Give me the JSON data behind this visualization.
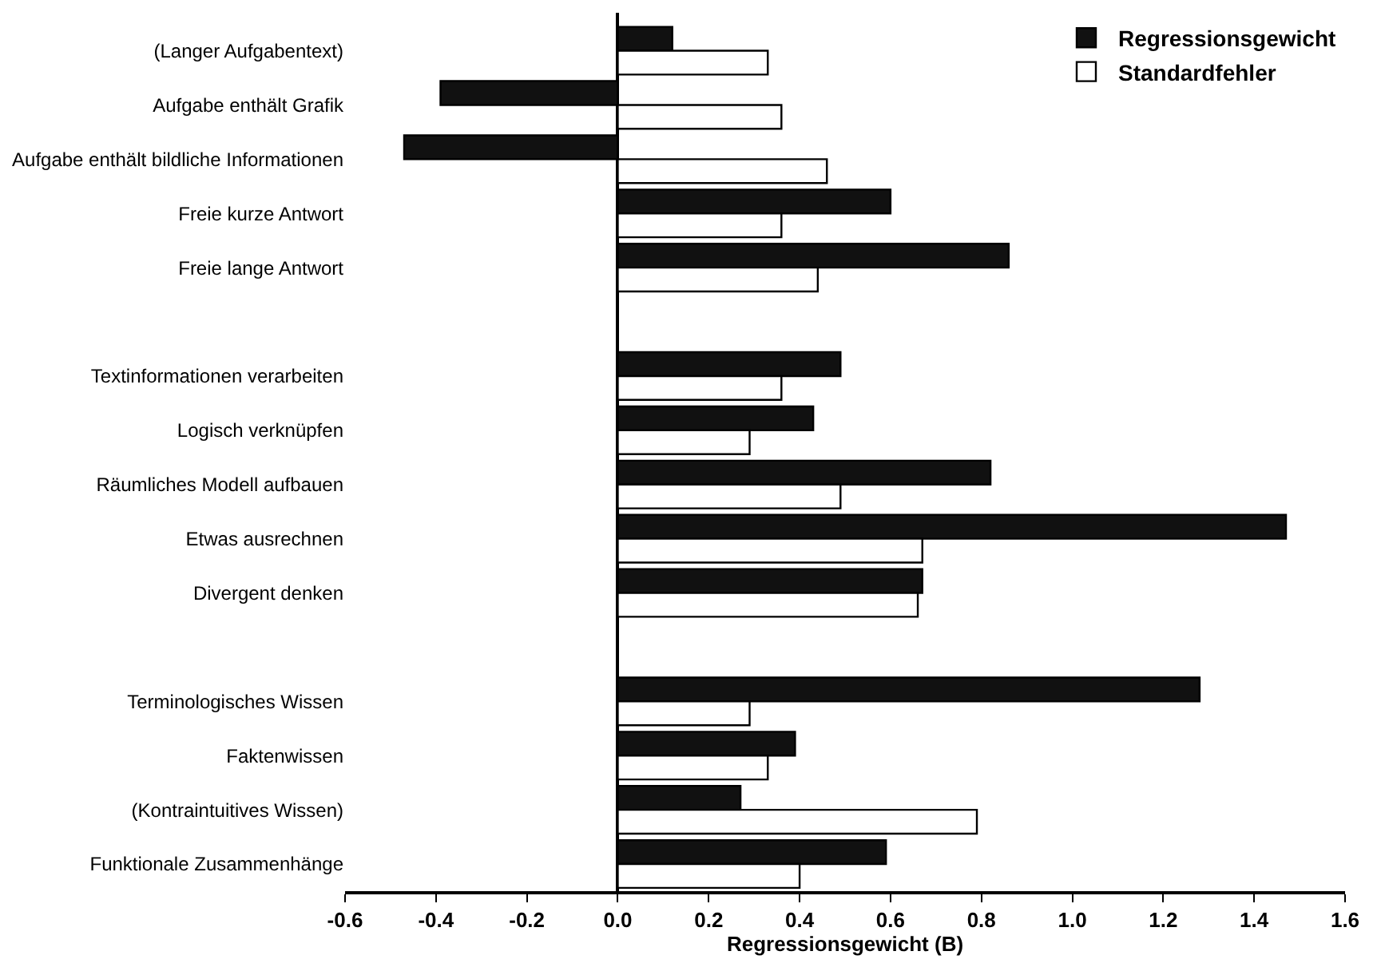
{
  "chart_data": {
    "type": "bar",
    "orientation": "horizontal",
    "xlabel": "Regressionsgewicht (B)",
    "categories": [
      "(Langer Aufgabentext)",
      "Aufgabe enthält Grafik",
      "Aufgabe enthält bildliche Informationen",
      "Freie kurze Antwort",
      "Freie lange Antwort",
      null,
      "Textinformationen verarbeiten",
      "Logisch verknüpfen",
      "Räumliches Modell aufbauen",
      "Etwas ausrechnen",
      "Divergent denken",
      null,
      "Terminologisches Wissen",
      "Faktenwissen",
      "(Kontraintuitives Wissen)",
      "Funktionale Zusammenhänge"
    ],
    "series": [
      {
        "name": "Regressionsgewicht",
        "color": "#111111",
        "values": [
          0.12,
          -0.39,
          -0.47,
          0.6,
          0.86,
          null,
          0.49,
          0.43,
          0.82,
          1.47,
          0.67,
          null,
          1.28,
          0.39,
          0.27,
          0.59
        ]
      },
      {
        "name": "Standardfehler",
        "color": "#ffffff",
        "values": [
          0.33,
          0.36,
          0.46,
          0.36,
          0.44,
          null,
          0.36,
          0.29,
          0.49,
          0.67,
          0.66,
          null,
          0.29,
          0.33,
          0.79,
          0.4
        ]
      }
    ],
    "xlim": [
      -0.6,
      1.6
    ],
    "xticks": [
      {
        "value": -0.6,
        "label": "-0.6"
      },
      {
        "value": -0.4,
        "label": "-0.4"
      },
      {
        "value": -0.2,
        "label": "-0.2"
      },
      {
        "value": 0,
        "label": "0.0"
      },
      {
        "value": 0.2,
        "label": "0.2"
      },
      {
        "value": 0.4,
        "label": "0.4"
      },
      {
        "value": 0.6,
        "label": "0.6"
      },
      {
        "value": 0.8,
        "label": "0.8"
      },
      {
        "value": 1.0,
        "label": "1.0"
      },
      {
        "value": 1.2,
        "label": "1.2"
      },
      {
        "value": 1.4,
        "label": "1.4"
      },
      {
        "value": 1.6,
        "label": "1.6"
      }
    ],
    "legend": "top right"
  }
}
